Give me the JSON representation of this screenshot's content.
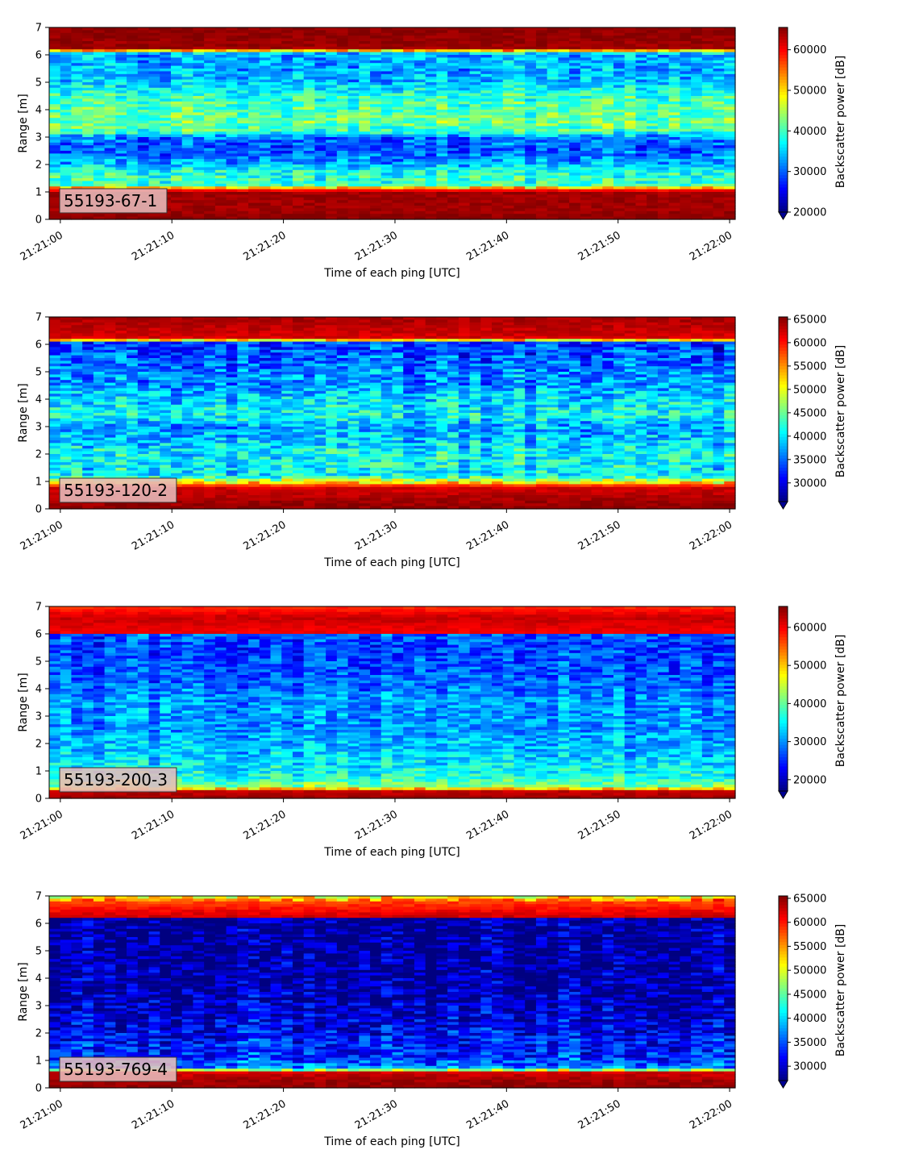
{
  "colormap": "jet",
  "chart_data": [
    {
      "type": "heatmap",
      "panel_label": "55193-67-1",
      "xlabel": "Time of each ping [UTC]",
      "ylabel": "Range [m]",
      "colorbar_label": "Backscatter power [dB]",
      "x_ticks": [
        "21:21:00",
        "21:21:10",
        "21:21:20",
        "21:21:30",
        "21:21:40",
        "21:21:50",
        "21:22:00"
      ],
      "y_ticks": [
        0,
        1,
        2,
        3,
        4,
        5,
        6,
        7
      ],
      "ylim": [
        0,
        7
      ],
      "xlim_seconds": [
        -1,
        60.5
      ],
      "colorbar_ticks": [
        20000,
        30000,
        40000,
        50000,
        60000
      ],
      "colorbar_range": [
        20000,
        65500
      ],
      "colorbar_extend": "min",
      "profile": [
        {
          "range": 0.0,
          "value": 65500
        },
        {
          "range": 0.3,
          "value": 64000
        },
        {
          "range": 1.0,
          "value": 64000
        },
        {
          "range": 1.1,
          "value": 56000
        },
        {
          "range": 1.25,
          "value": 40000
        },
        {
          "range": 1.8,
          "value": 38000
        },
        {
          "range": 2.0,
          "value": 33000
        },
        {
          "range": 2.6,
          "value": 29000
        },
        {
          "range": 3.0,
          "value": 31000
        },
        {
          "range": 3.2,
          "value": 40000
        },
        {
          "range": 3.5,
          "value": 42000
        },
        {
          "range": 4.0,
          "value": 41000
        },
        {
          "range": 4.5,
          "value": 39000
        },
        {
          "range": 5.0,
          "value": 34000
        },
        {
          "range": 5.5,
          "value": 33000
        },
        {
          "range": 6.0,
          "value": 33000
        },
        {
          "range": 6.12,
          "value": 38000
        },
        {
          "range": 6.18,
          "value": 64000
        },
        {
          "range": 7.0,
          "value": 65000
        }
      ]
    },
    {
      "type": "heatmap",
      "panel_label": "55193-120-2",
      "xlabel": "Time of each ping [UTC]",
      "ylabel": "Range [m]",
      "colorbar_label": "Backscatter power [dB]",
      "x_ticks": [
        "21:21:00",
        "21:21:10",
        "21:21:20",
        "21:21:30",
        "21:21:40",
        "21:21:50",
        "21:22:00"
      ],
      "y_ticks": [
        0,
        1,
        2,
        3,
        4,
        5,
        6,
        7
      ],
      "ylim": [
        0,
        7
      ],
      "xlim_seconds": [
        -1,
        60.5
      ],
      "colorbar_ticks": [
        30000,
        35000,
        40000,
        45000,
        50000,
        55000,
        60000,
        65000
      ],
      "colorbar_range": [
        26000,
        65500
      ],
      "colorbar_extend": "min",
      "profile": [
        {
          "range": 0.0,
          "value": 65000
        },
        {
          "range": 0.3,
          "value": 64000
        },
        {
          "range": 0.8,
          "value": 62000
        },
        {
          "range": 0.9,
          "value": 55000
        },
        {
          "range": 1.0,
          "value": 50000
        },
        {
          "range": 1.2,
          "value": 40000
        },
        {
          "range": 2.0,
          "value": 41000
        },
        {
          "range": 2.6,
          "value": 38000
        },
        {
          "range": 3.0,
          "value": 37000
        },
        {
          "range": 3.4,
          "value": 41000
        },
        {
          "range": 4.0,
          "value": 39000
        },
        {
          "range": 4.6,
          "value": 36000
        },
        {
          "range": 5.0,
          "value": 36000
        },
        {
          "range": 5.5,
          "value": 34000
        },
        {
          "range": 6.1,
          "value": 33000
        },
        {
          "range": 6.18,
          "value": 62000
        },
        {
          "range": 7.0,
          "value": 64000
        }
      ]
    },
    {
      "type": "heatmap",
      "panel_label": "55193-200-3",
      "xlabel": "Time of each ping [UTC]",
      "ylabel": "Range [m]",
      "colorbar_label": "Backscatter power [dB]",
      "x_ticks": [
        "21:21:00",
        "21:21:10",
        "21:21:20",
        "21:21:30",
        "21:21:40",
        "21:21:50",
        "21:22:00"
      ],
      "y_ticks": [
        0,
        1,
        2,
        3,
        4,
        5,
        6,
        7
      ],
      "ylim": [
        0,
        7
      ],
      "xlim_seconds": [
        -1,
        60.5
      ],
      "colorbar_ticks": [
        20000,
        30000,
        40000,
        50000,
        60000
      ],
      "colorbar_range": [
        17000,
        65500
      ],
      "colorbar_extend": "min",
      "profile": [
        {
          "range": 0.0,
          "value": 64000
        },
        {
          "range": 0.3,
          "value": 62000
        },
        {
          "range": 0.38,
          "value": 42000
        },
        {
          "range": 0.8,
          "value": 36000
        },
        {
          "range": 1.5,
          "value": 33000
        },
        {
          "range": 2.5,
          "value": 30000
        },
        {
          "range": 3.5,
          "value": 30000
        },
        {
          "range": 4.5,
          "value": 27000
        },
        {
          "range": 5.5,
          "value": 26000
        },
        {
          "range": 6.0,
          "value": 27000
        },
        {
          "range": 6.05,
          "value": 60000
        },
        {
          "range": 6.6,
          "value": 62000
        },
        {
          "range": 7.0,
          "value": 57000
        }
      ]
    },
    {
      "type": "heatmap",
      "panel_label": "55193-769-4",
      "xlabel": "Time of each ping [UTC]",
      "ylabel": "Range [m]",
      "colorbar_label": "Backscatter power [dB]",
      "x_ticks": [
        "21:21:00",
        "21:21:10",
        "21:21:20",
        "21:21:30",
        "21:21:40",
        "21:21:50",
        "21:22:00"
      ],
      "y_ticks": [
        0,
        1,
        2,
        3,
        4,
        5,
        6,
        7
      ],
      "ylim": [
        0,
        7
      ],
      "xlim_seconds": [
        -1,
        60.5
      ],
      "colorbar_ticks": [
        30000,
        35000,
        40000,
        45000,
        50000,
        55000,
        60000,
        65000
      ],
      "colorbar_range": [
        27000,
        65500
      ],
      "colorbar_extend": "min",
      "profile": [
        {
          "range": 0.0,
          "value": 65000
        },
        {
          "range": 0.3,
          "value": 64000
        },
        {
          "range": 0.6,
          "value": 62000
        },
        {
          "range": 0.68,
          "value": 38000
        },
        {
          "range": 1.0,
          "value": 34000
        },
        {
          "range": 2.0,
          "value": 31500
        },
        {
          "range": 3.0,
          "value": 29500
        },
        {
          "range": 4.0,
          "value": 28500
        },
        {
          "range": 6.15,
          "value": 28000
        },
        {
          "range": 6.2,
          "value": 63000
        },
        {
          "range": 6.8,
          "value": 58000
        },
        {
          "range": 7.0,
          "value": 50000
        }
      ]
    }
  ]
}
